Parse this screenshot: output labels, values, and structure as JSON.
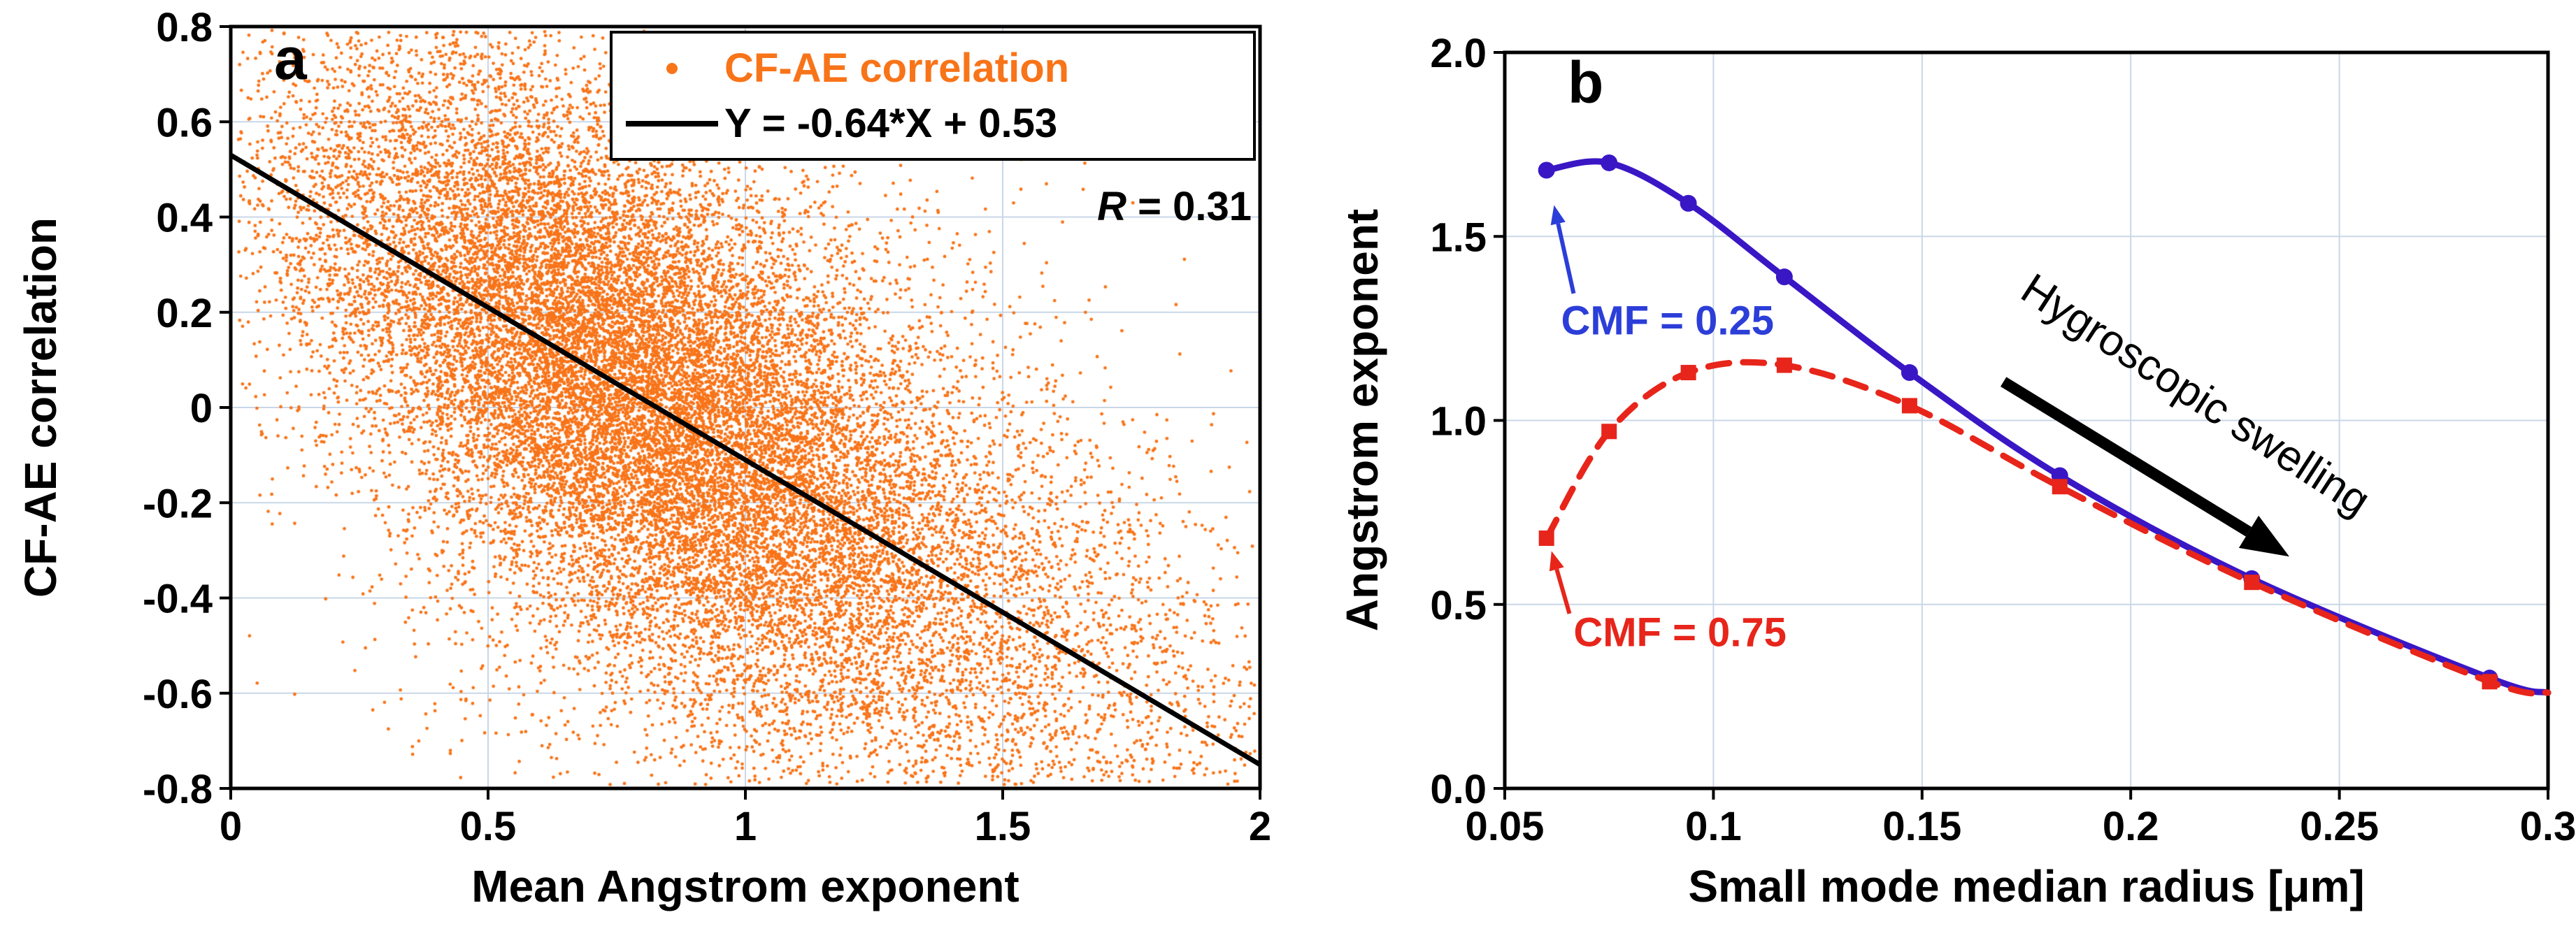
{
  "chart_data": [
    {
      "id": "panel-a",
      "panel_label": "a",
      "type": "scatter",
      "xlabel": "Mean Angstrom exponent",
      "ylabel": "CF-AE correlation",
      "xlim": [
        0,
        2
      ],
      "ylim": [
        -0.8,
        0.8
      ],
      "xticks": {
        "values": [
          0,
          0.5,
          1,
          1.5,
          2
        ],
        "labels": [
          "0",
          "0.5",
          "1",
          "1.5",
          "2"
        ]
      },
      "yticks": {
        "values": [
          0.8,
          0.6,
          0.4,
          0.2,
          0,
          -0.2,
          -0.4,
          -0.6,
          -0.8
        ],
        "labels": [
          "0.8",
          "0.6",
          "0.4",
          "0.2",
          "0",
          "-0.2",
          "-0.4",
          "-0.6",
          "-0.8"
        ]
      },
      "grid": true,
      "grid_color": "#c9d7e8",
      "scatter": {
        "name": "CF-AE correlation",
        "color": "#F87419",
        "dot_radius": 2.4,
        "n_points": 22000,
        "seed": 11,
        "x_clusters": [
          {
            "weight": 0.78,
            "mean": 0.75,
            "sd": 0.33
          },
          {
            "weight": 0.22,
            "mean": 1.28,
            "sd": 0.4
          }
        ],
        "noise": [
          {
            "weight": 0.85,
            "sd": 0.27
          },
          {
            "weight": 0.15,
            "sd": 0.52
          }
        ]
      },
      "fit_line": {
        "equation": "Y = -0.64*X + 0.53",
        "slope": -0.64,
        "intercept": 0.53,
        "color": "#000000"
      },
      "r_value": 0.31,
      "r_label": {
        "symbol": "R",
        "rest": " = 0.31"
      },
      "legend": {
        "position": "top-right",
        "entries": [
          {
            "label": "CF-AE correlation",
            "marker": "dot",
            "color": "#F87419"
          },
          {
            "label": "Y = -0.64*X + 0.53",
            "marker": "line",
            "color": "#000000"
          }
        ]
      }
    },
    {
      "id": "panel-b",
      "panel_label": "b",
      "type": "line",
      "xlabel": "Small mode median radius [μm]",
      "ylabel": "Angstrom exponent",
      "xlim": [
        0.05,
        0.3
      ],
      "ylim": [
        0,
        2
      ],
      "xticks": {
        "values": [
          0.05,
          0.1,
          0.15,
          0.2,
          0.25,
          0.3
        ],
        "labels": [
          "0.05",
          "0.1",
          "0.15",
          "0.2",
          "0.25",
          "0.3"
        ]
      },
      "yticks": {
        "values": [
          0,
          0.5,
          1,
          1.5,
          2
        ],
        "labels": [
          "0.0",
          "0.5",
          "1.0",
          "1.5",
          "2.0"
        ]
      },
      "grid": true,
      "grid_color": "#c9d7e8",
      "series": [
        {
          "name": "CMF = 0.25",
          "color": "#3A17C5",
          "line_style": "solid",
          "marker": "circle",
          "x": [
            0.06,
            0.075,
            0.094,
            0.117,
            0.147,
            0.183,
            0.229,
            0.286,
            0.3
          ],
          "y": [
            1.68,
            1.7,
            1.59,
            1.39,
            1.13,
            0.85,
            0.57,
            0.3,
            0.26
          ]
        },
        {
          "name": "CMF = 0.75",
          "color": "#E7251B",
          "line_style": "dashed",
          "marker": "square",
          "x": [
            0.06,
            0.075,
            0.094,
            0.117,
            0.147,
            0.183,
            0.229,
            0.286,
            0.3
          ],
          "y": [
            0.68,
            0.97,
            1.13,
            1.15,
            1.04,
            0.82,
            0.56,
            0.29,
            0.26
          ]
        }
      ],
      "annotations": [
        {
          "text": "CMF = 0.25",
          "color": "#2C3ED8",
          "text_pos": [
            0.089,
            1.27
          ],
          "arrow_from": [
            0.0665,
            1.345
          ],
          "arrow_to": [
            0.0618,
            1.585
          ],
          "arrow_width": 6
        },
        {
          "text": "CMF = 0.75",
          "color": "#E7251B",
          "text_pos": [
            0.092,
            0.424
          ],
          "arrow_from": [
            0.0655,
            0.475
          ],
          "arrow_to": [
            0.0612,
            0.645
          ],
          "arrow_width": 6
        },
        {
          "text": "Hygroscopic swelling",
          "color": "#000000",
          "text_pos": [
            0.2156,
            1.069
          ],
          "rotation_deg": 33,
          "arrow_from": [
            0.1695,
            1.105
          ],
          "arrow_to": [
            0.238,
            0.63
          ],
          "arrow_width": 16
        }
      ]
    }
  ]
}
